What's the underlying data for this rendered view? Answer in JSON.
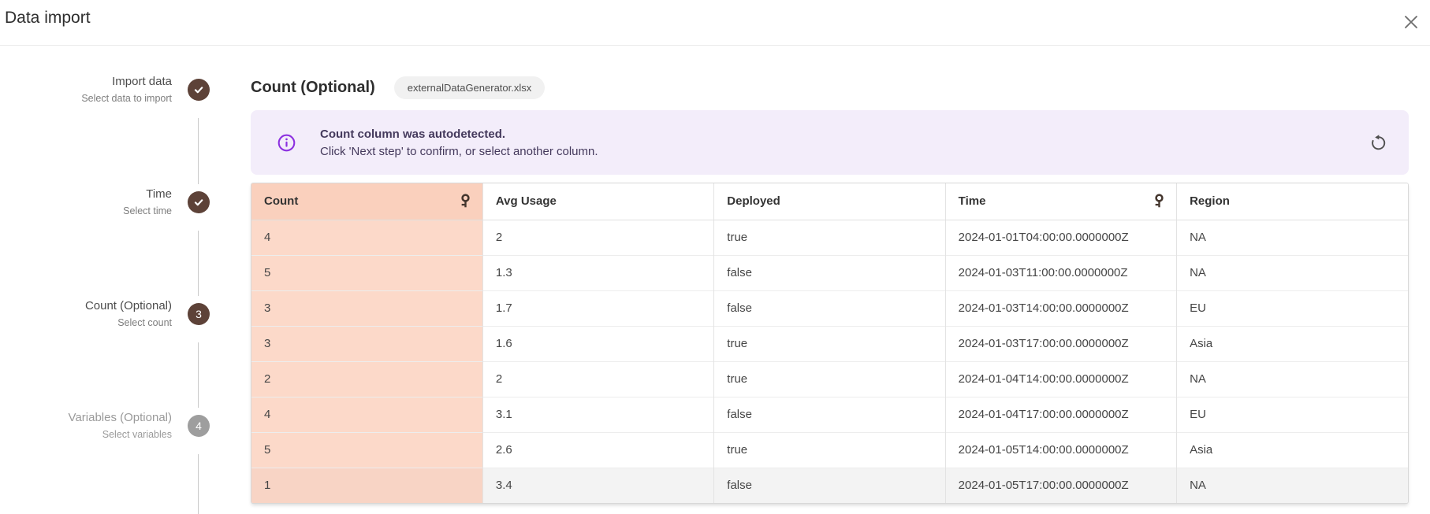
{
  "dialog": {
    "title": "Data import",
    "close_icon": "x-icon"
  },
  "stepper": {
    "steps": [
      {
        "label": "Import data",
        "sublabel": "Select data to import",
        "status": "done",
        "icon": "check-icon"
      },
      {
        "label": "Time",
        "sublabel": "Select time",
        "status": "done",
        "icon": "check-icon"
      },
      {
        "label": "Count (Optional)",
        "sublabel": "Select count",
        "status": "active",
        "number": "3"
      },
      {
        "label": "Variables (Optional)",
        "sublabel": "Select variables",
        "status": "upcoming",
        "number": "4"
      }
    ]
  },
  "main": {
    "heading": "Count (Optional)",
    "file_chip": "externalDataGenerator.xlsx",
    "banner": {
      "icon": "info-icon",
      "title": "Count column was autodetected.",
      "message": "Click 'Next step' to confirm, or select another column.",
      "action_icon": "reset-icon"
    },
    "table": {
      "columns": [
        {
          "label": "Count",
          "key_icon": true,
          "highlighted": true
        },
        {
          "label": "Avg Usage",
          "key_icon": false,
          "highlighted": false
        },
        {
          "label": "Deployed",
          "key_icon": false,
          "highlighted": false
        },
        {
          "label": "Time",
          "key_icon": true,
          "highlighted": false
        },
        {
          "label": "Region",
          "key_icon": false,
          "highlighted": false
        }
      ],
      "rows": [
        [
          "4",
          "2",
          "true",
          "2024-01-01T04:00:00.0000000Z",
          "NA"
        ],
        [
          "5",
          "1.3",
          "false",
          "2024-01-03T11:00:00.0000000Z",
          "NA"
        ],
        [
          "3",
          "1.7",
          "false",
          "2024-01-03T14:00:00.0000000Z",
          "EU"
        ],
        [
          "3",
          "1.6",
          "true",
          "2024-01-03T17:00:00.0000000Z",
          "Asia"
        ],
        [
          "2",
          "2",
          "true",
          "2024-01-04T14:00:00.0000000Z",
          "NA"
        ],
        [
          "4",
          "3.1",
          "false",
          "2024-01-04T17:00:00.0000000Z",
          "EU"
        ],
        [
          "5",
          "2.6",
          "true",
          "2024-01-05T14:00:00.0000000Z",
          "Asia"
        ],
        [
          "1",
          "3.4",
          "false",
          "2024-01-05T17:00:00.0000000Z",
          "NA"
        ]
      ]
    }
  },
  "colors": {
    "accent_brown": "#5d4238",
    "step_inactive_gray": "#9e9e9e",
    "banner_bg": "#f3edfa",
    "banner_text": "#44395c",
    "info_purple": "#8c30e0",
    "count_header_bg": "#fad0bd",
    "count_cell_bg": "#fcd9c9",
    "last_row_bg": "#f3f3f3"
  }
}
